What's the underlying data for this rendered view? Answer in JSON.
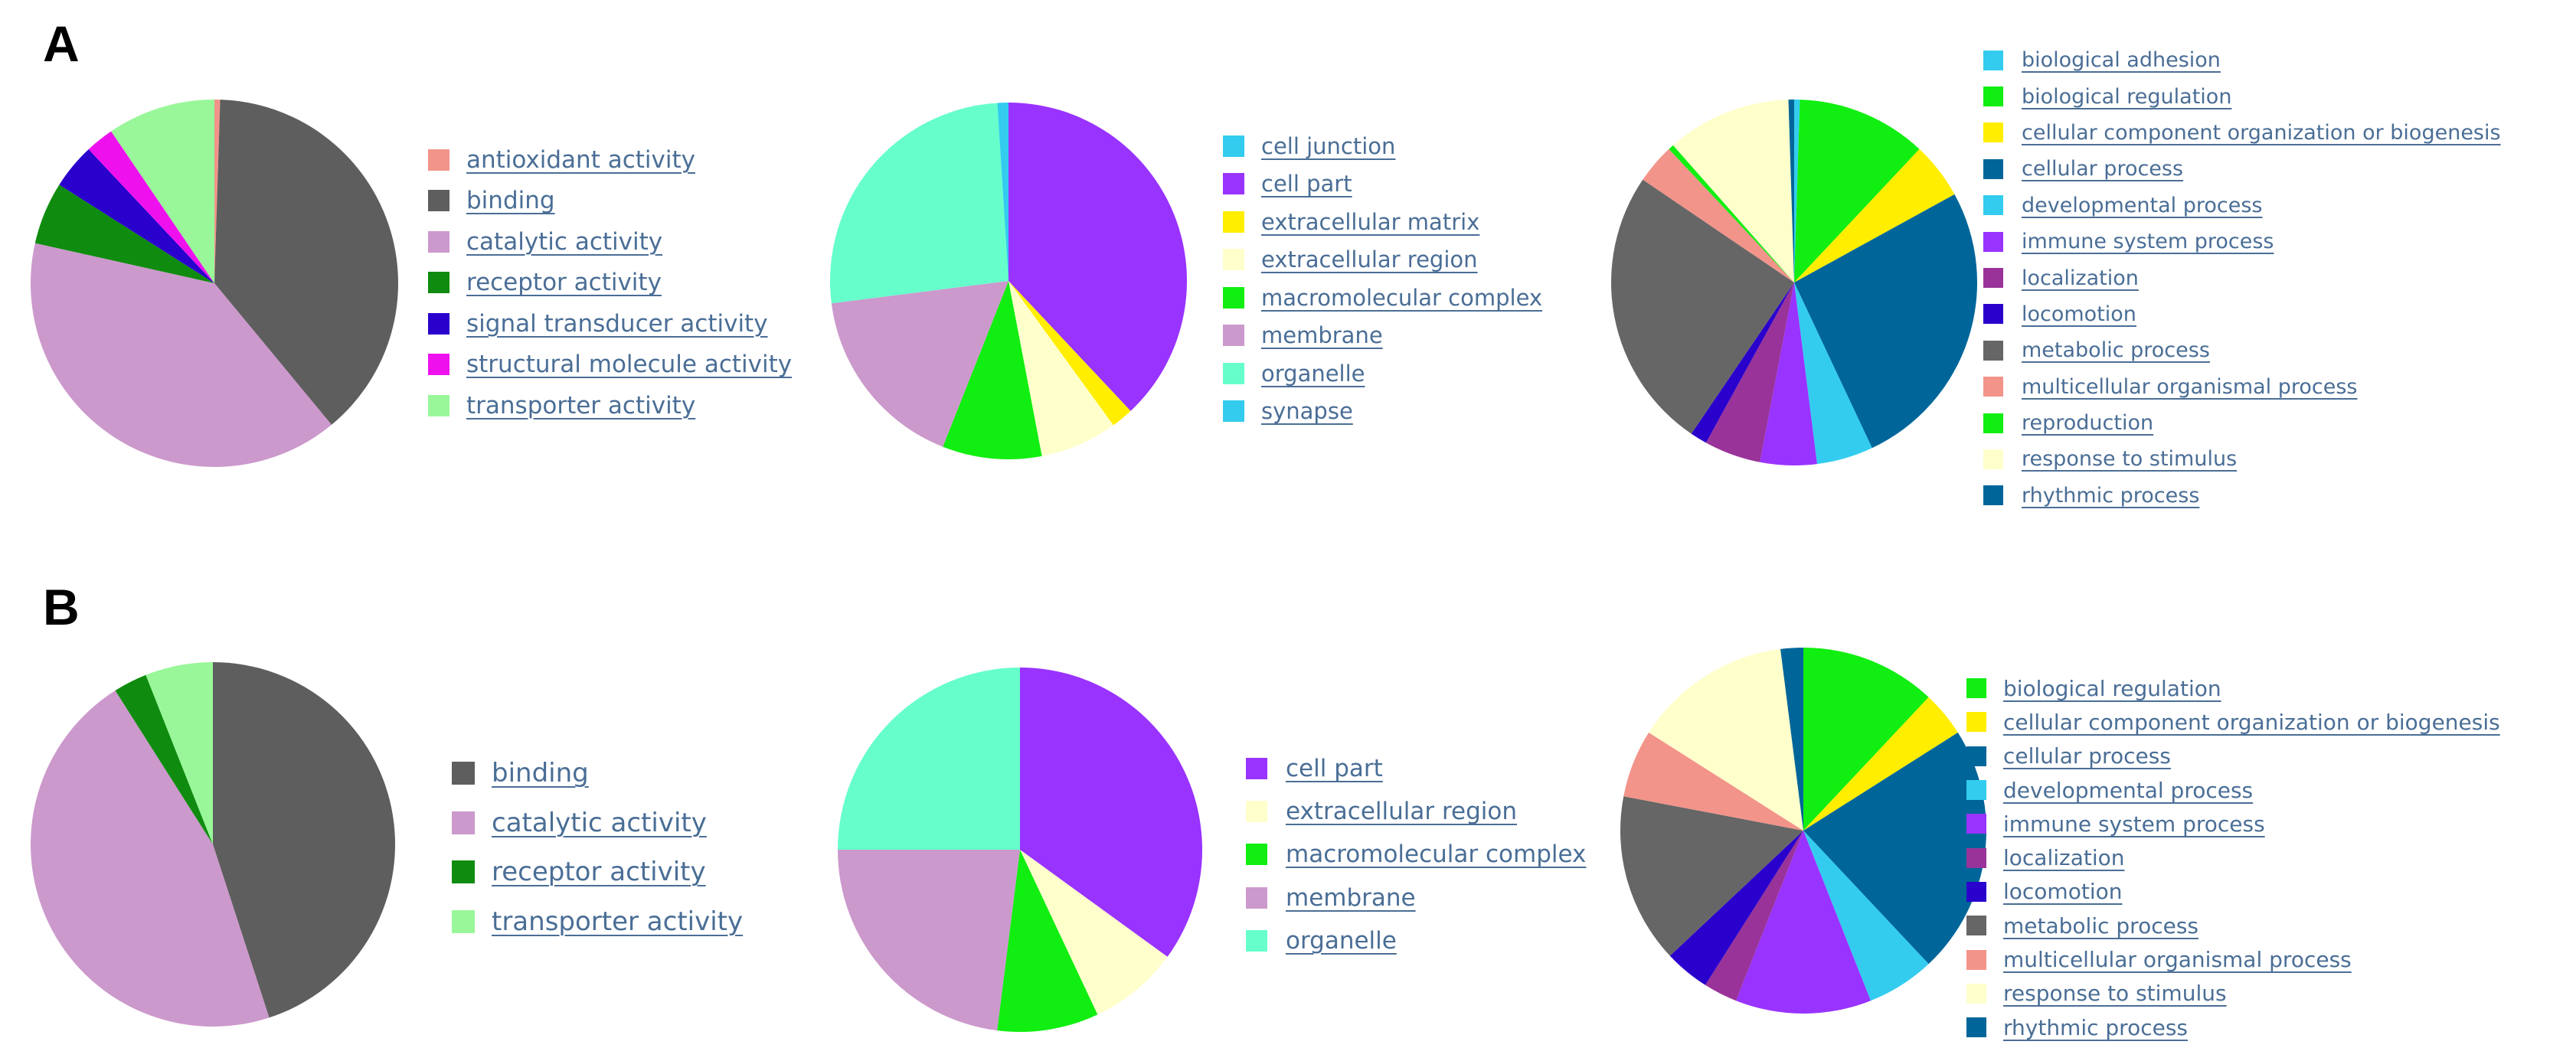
{
  "panels": [
    {
      "label": "A"
    },
    {
      "label": "B"
    }
  ],
  "chart_data": [
    {
      "type": "pie",
      "panel": "A",
      "title": "",
      "legend_position": "right",
      "slices": [
        {
          "name": "antioxidant activity",
          "value": 0.5,
          "color": "#f2948a"
        },
        {
          "name": "binding",
          "value": 38.5,
          "color": "#5e5e5e"
        },
        {
          "name": "catalytic activity",
          "value": 39.5,
          "color": "#cc99cc"
        },
        {
          "name": "receptor activity",
          "value": 5.5,
          "color": "#0f8c0f"
        },
        {
          "name": "signal transducer activity",
          "value": 4.0,
          "color": "#2a00cc"
        },
        {
          "name": "structural molecule activity",
          "value": 2.5,
          "color": "#ee11ee"
        },
        {
          "name": "transporter activity",
          "value": 9.5,
          "color": "#99f799"
        }
      ]
    },
    {
      "type": "pie",
      "panel": "A",
      "title": "",
      "legend_position": "right",
      "slices": [
        {
          "name": "cell junction",
          "value": 0.0,
          "color": "#33ccee"
        },
        {
          "name": "cell part",
          "value": 38.0,
          "color": "#9933ff"
        },
        {
          "name": "extracellular matrix",
          "value": 2.0,
          "color": "#ffee00"
        },
        {
          "name": "extracellular region",
          "value": 7.0,
          "color": "#ffffcc"
        },
        {
          "name": "macromolecular complex",
          "value": 9.0,
          "color": "#11ee11"
        },
        {
          "name": "membrane",
          "value": 17.0,
          "color": "#cc99cc"
        },
        {
          "name": "organelle",
          "value": 26.0,
          "color": "#66ffcc"
        },
        {
          "name": "synapse",
          "value": 1.0,
          "color": "#33ccee"
        }
      ]
    },
    {
      "type": "pie",
      "panel": "A",
      "title": "",
      "legend_position": "right",
      "slices": [
        {
          "name": "biological adhesion",
          "value": 0.5,
          "color": "#33ccee"
        },
        {
          "name": "biological regulation",
          "value": 11.5,
          "color": "#11ee11"
        },
        {
          "name": "cellular component organization or biogenesis",
          "value": 5.0,
          "color": "#ffee00"
        },
        {
          "name": "cellular process",
          "value": 26.0,
          "color": "#006699"
        },
        {
          "name": "developmental process",
          "value": 5.0,
          "color": "#33ccee"
        },
        {
          "name": "immune system process",
          "value": 5.0,
          "color": "#9933ff"
        },
        {
          "name": "localization",
          "value": 5.0,
          "color": "#993399"
        },
        {
          "name": "locomotion",
          "value": 1.5,
          "color": "#2a00cc"
        },
        {
          "name": "metabolic process",
          "value": 25.0,
          "color": "#666666"
        },
        {
          "name": "multicellular organismal process",
          "value": 3.5,
          "color": "#f2948a"
        },
        {
          "name": "reproduction",
          "value": 0.5,
          "color": "#11ee11"
        },
        {
          "name": "response to stimulus",
          "value": 11.0,
          "color": "#ffffcc"
        },
        {
          "name": "rhythmic process",
          "value": 0.5,
          "color": "#006699"
        }
      ]
    },
    {
      "type": "pie",
      "panel": "B",
      "title": "",
      "legend_position": "right",
      "slices": [
        {
          "name": "binding",
          "value": 45.0,
          "color": "#5e5e5e"
        },
        {
          "name": "catalytic activity",
          "value": 46.0,
          "color": "#cc99cc"
        },
        {
          "name": "receptor activity",
          "value": 3.0,
          "color": "#0f8c0f"
        },
        {
          "name": "transporter activity",
          "value": 6.0,
          "color": "#99f799"
        }
      ]
    },
    {
      "type": "pie",
      "panel": "B",
      "title": "",
      "legend_position": "right",
      "slices": [
        {
          "name": "cell part",
          "value": 35.0,
          "color": "#9933ff"
        },
        {
          "name": "extracellular region",
          "value": 8.0,
          "color": "#ffffcc"
        },
        {
          "name": "macromolecular complex",
          "value": 9.0,
          "color": "#11ee11"
        },
        {
          "name": "membrane",
          "value": 23.0,
          "color": "#cc99cc"
        },
        {
          "name": "organelle",
          "value": 25.0,
          "color": "#66ffcc"
        }
      ]
    },
    {
      "type": "pie",
      "panel": "B",
      "title": "",
      "legend_position": "right",
      "slices": [
        {
          "name": "biological regulation",
          "value": 12.0,
          "color": "#11ee11"
        },
        {
          "name": "cellular component organization or biogenesis",
          "value": 4.0,
          "color": "#ffee00"
        },
        {
          "name": "cellular process",
          "value": 22.0,
          "color": "#006699"
        },
        {
          "name": "developmental process",
          "value": 6.0,
          "color": "#33ccee"
        },
        {
          "name": "immune system process",
          "value": 12.0,
          "color": "#9933ff"
        },
        {
          "name": "localization",
          "value": 3.0,
          "color": "#993399"
        },
        {
          "name": "locomotion",
          "value": 4.0,
          "color": "#2a00cc"
        },
        {
          "name": "metabolic process",
          "value": 15.0,
          "color": "#666666"
        },
        {
          "name": "multicellular organismal process",
          "value": 6.0,
          "color": "#f2948a"
        },
        {
          "name": "response to stimulus",
          "value": 14.0,
          "color": "#ffffcc"
        },
        {
          "name": "rhythmic process",
          "value": 2.0,
          "color": "#006699"
        }
      ]
    }
  ]
}
